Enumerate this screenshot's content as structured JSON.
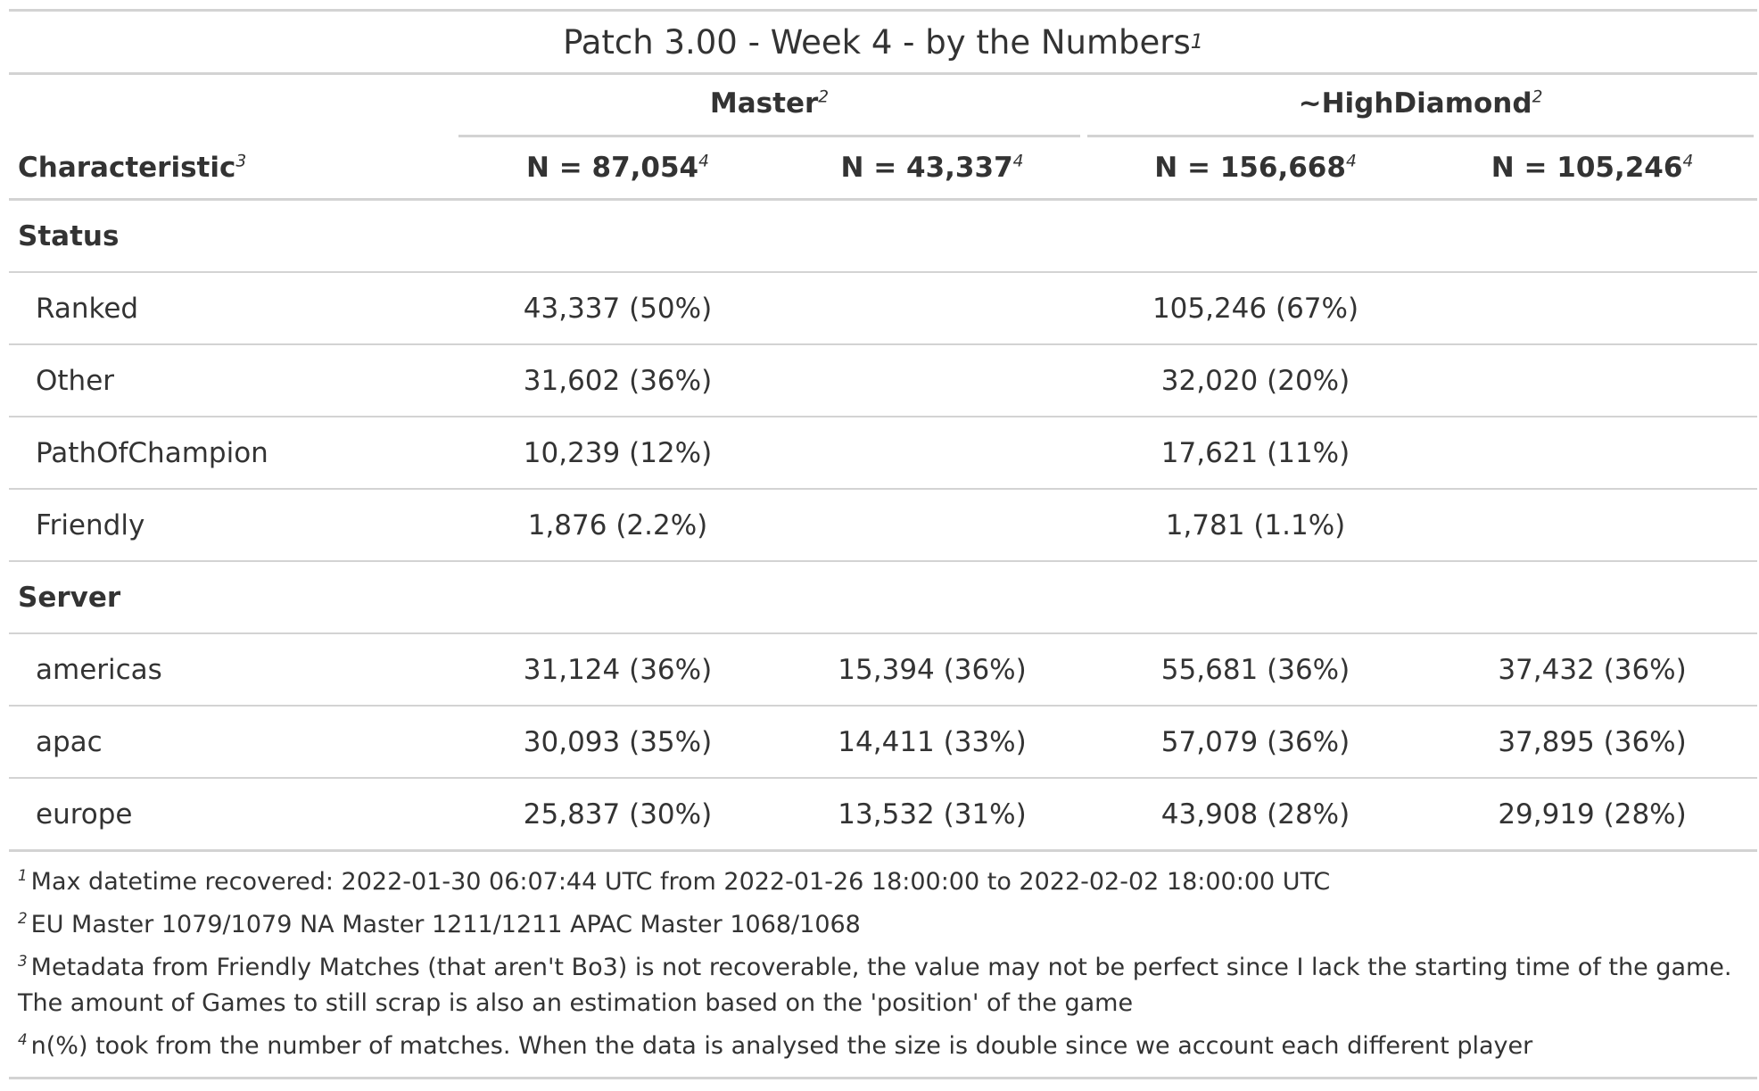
{
  "title": "Patch 3.00 - Week 4 - by the Numbers",
  "title_note": "1",
  "spanners": [
    {
      "label": "Master",
      "note": "2"
    },
    {
      "label": "~HighDiamond",
      "note": "2"
    }
  ],
  "columns": {
    "label": "Characteristic",
    "label_note": "3",
    "n_headers": [
      {
        "label": "N = 87,054",
        "note": "4"
      },
      {
        "label": "N = 43,337",
        "note": "4"
      },
      {
        "label": "N = 156,668",
        "note": "4"
      },
      {
        "label": "N = 105,246",
        "note": "4"
      }
    ]
  },
  "groups": [
    {
      "name": "Status",
      "rows": [
        {
          "label": "Ranked",
          "values": [
            "43,337 (50%)",
            "",
            "105,246 (67%)",
            ""
          ]
        },
        {
          "label": "Other",
          "values": [
            "31,602 (36%)",
            "",
            "32,020 (20%)",
            ""
          ]
        },
        {
          "label": "PathOfChampion",
          "values": [
            "10,239 (12%)",
            "",
            "17,621 (11%)",
            ""
          ]
        },
        {
          "label": "Friendly",
          "values": [
            "1,876 (2.2%)",
            "",
            "1,781 (1.1%)",
            ""
          ]
        }
      ]
    },
    {
      "name": "Server",
      "rows": [
        {
          "label": "americas",
          "values": [
            "31,124 (36%)",
            "15,394 (36%)",
            "55,681 (36%)",
            "37,432 (36%)"
          ]
        },
        {
          "label": "apac",
          "values": [
            "30,093 (35%)",
            "14,411 (33%)",
            "57,079 (36%)",
            "37,895 (36%)"
          ]
        },
        {
          "label": "europe",
          "values": [
            "25,837 (30%)",
            "13,532 (31%)",
            "43,908 (28%)",
            "29,919 (28%)"
          ]
        }
      ]
    }
  ],
  "footnotes": [
    {
      "mark": "1",
      "text": "Max datetime recovered: 2022-01-30 06:07:44 UTC from 2022-01-26 18:00:00 to 2022-02-02 18:00:00 UTC"
    },
    {
      "mark": "2",
      "text": "EU Master 1079/1079 NA Master 1211/1211 APAC Master 1068/1068"
    },
    {
      "mark": "3",
      "text": "Metadata from Friendly Matches (that aren't Bo3) is not recoverable, the value may not be perfect since I lack the starting time of the game. The amount of Games to still scrap is also an estimation based on the 'position' of the game"
    },
    {
      "mark": "4",
      "text": "n(%) took from the number of matches. When the data is analysed the size is double since we account each different player"
    }
  ]
}
